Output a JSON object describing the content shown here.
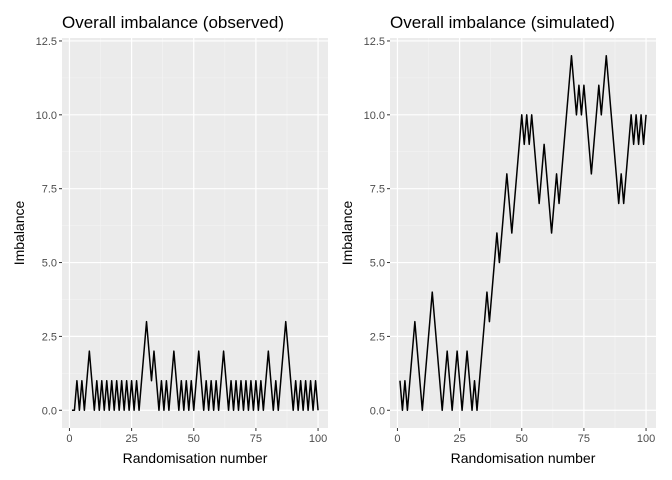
{
  "chart_data": [
    {
      "type": "line",
      "title": "Overall imbalance (observed)",
      "xlabel": "Randomisation number",
      "ylabel": "Imbalance",
      "xlim": [
        -3,
        104
      ],
      "ylim": [
        -0.6,
        12.6
      ],
      "xticks": [
        0,
        25,
        50,
        75,
        100
      ],
      "xtick_labels": [
        "0",
        "25",
        "50",
        "75",
        "100"
      ],
      "yticks": [
        0,
        2.5,
        5,
        7.5,
        10,
        12.5
      ],
      "ytick_labels": [
        "0.0",
        "2.5",
        "5.0",
        "7.5",
        "10.0",
        "12.5"
      ],
      "grid": true,
      "line_color": "#000000",
      "x": [
        1,
        2,
        3,
        4,
        5,
        6,
        7,
        8,
        9,
        10,
        11,
        12,
        13,
        14,
        15,
        16,
        17,
        18,
        19,
        20,
        21,
        22,
        23,
        24,
        25,
        26,
        27,
        28,
        29,
        30,
        31,
        32,
        33,
        34,
        35,
        36,
        37,
        38,
        39,
        40,
        41,
        42,
        43,
        44,
        45,
        46,
        47,
        48,
        49,
        50,
        51,
        52,
        53,
        54,
        55,
        56,
        57,
        58,
        59,
        60,
        61,
        62,
        63,
        64,
        65,
        66,
        67,
        68,
        69,
        70,
        71,
        72,
        73,
        74,
        75,
        76,
        77,
        78,
        79,
        80,
        81,
        82,
        83,
        84,
        85,
        86,
        87,
        88,
        89,
        90,
        91,
        92,
        93,
        94,
        95,
        96,
        97,
        98,
        99,
        100
      ],
      "y": [
        0,
        0,
        1,
        0,
        1,
        0,
        1,
        2,
        1,
        0,
        1,
        0,
        1,
        0,
        1,
        0,
        1,
        0,
        1,
        0,
        1,
        0,
        1,
        0,
        1,
        0,
        1,
        0,
        1,
        2,
        3,
        2,
        1,
        2,
        1,
        0,
        1,
        0,
        1,
        0,
        1,
        2,
        1,
        0,
        1,
        0,
        1,
        0,
        1,
        0,
        1,
        2,
        1,
        0,
        1,
        0,
        1,
        0,
        1,
        0,
        1,
        2,
        1,
        0,
        1,
        0,
        1,
        0,
        1,
        0,
        1,
        0,
        1,
        0,
        1,
        0,
        1,
        0,
        1,
        2,
        1,
        0,
        1,
        0,
        1,
        2,
        3,
        2,
        1,
        0,
        1,
        0,
        1,
        0,
        1,
        0,
        1,
        0,
        1,
        0
      ]
    },
    {
      "type": "line",
      "title": "Overall imbalance (simulated)",
      "xlabel": "Randomisation number",
      "ylabel": "Imbalance",
      "xlim": [
        -3,
        104
      ],
      "ylim": [
        -0.6,
        12.6
      ],
      "xticks": [
        0,
        25,
        50,
        75,
        100
      ],
      "xtick_labels": [
        "0",
        "25",
        "50",
        "75",
        "100"
      ],
      "yticks": [
        0,
        2.5,
        5,
        7.5,
        10,
        12.5
      ],
      "ytick_labels": [
        "0.0",
        "2.5",
        "5.0",
        "7.5",
        "10.0",
        "12.5"
      ],
      "grid": true,
      "line_color": "#000000",
      "x": [
        1,
        2,
        3,
        4,
        5,
        6,
        7,
        8,
        9,
        10,
        11,
        12,
        13,
        14,
        15,
        16,
        17,
        18,
        19,
        20,
        21,
        22,
        23,
        24,
        25,
        26,
        27,
        28,
        29,
        30,
        31,
        32,
        33,
        34,
        35,
        36,
        37,
        38,
        39,
        40,
        41,
        42,
        43,
        44,
        45,
        46,
        47,
        48,
        49,
        50,
        51,
        52,
        53,
        54,
        55,
        56,
        57,
        58,
        59,
        60,
        61,
        62,
        63,
        64,
        65,
        66,
        67,
        68,
        69,
        70,
        71,
        72,
        73,
        74,
        75,
        76,
        77,
        78,
        79,
        80,
        81,
        82,
        83,
        84,
        85,
        86,
        87,
        88,
        89,
        90,
        91,
        92,
        93,
        94,
        95,
        96,
        97,
        98,
        99,
        100
      ],
      "y": [
        1,
        0,
        1,
        0,
        1,
        2,
        3,
        2,
        1,
        0,
        1,
        2,
        3,
        4,
        3,
        2,
        1,
        0,
        1,
        2,
        1,
        0,
        1,
        2,
        1,
        0,
        1,
        2,
        1,
        0,
        1,
        0,
        1,
        2,
        3,
        4,
        3,
        4,
        5,
        6,
        5,
        6,
        7,
        8,
        7,
        6,
        7,
        8,
        9,
        10,
        9,
        10,
        9,
        10,
        9,
        8,
        7,
        8,
        9,
        8,
        7,
        6,
        7,
        8,
        7,
        8,
        9,
        10,
        11,
        12,
        11,
        10,
        11,
        10,
        11,
        10,
        9,
        8,
        9,
        10,
        11,
        10,
        11,
        12,
        11,
        10,
        9,
        8,
        7,
        8,
        7,
        8,
        9,
        10,
        9,
        10,
        9,
        10,
        9,
        10
      ]
    }
  ]
}
